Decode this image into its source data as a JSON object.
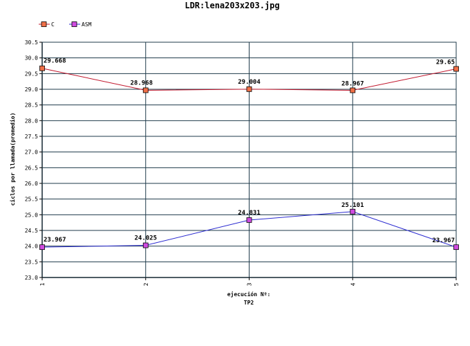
{
  "chart_data": {
    "type": "line",
    "title": "LDR:lena203x203.jpg",
    "xlabel": "ejecución Nº:",
    "xlabel2": "TP2",
    "ylabel": "ciclos por llamada(promedio)",
    "categories": [
      "1",
      "2",
      "3",
      "4",
      "5"
    ],
    "ylim": [
      23.0,
      30.5
    ],
    "ytick_step": 0.5,
    "yticks": [
      "23.0",
      "23.5",
      "24.0",
      "24.5",
      "25.0",
      "25.5",
      "26.0",
      "26.5",
      "27.0",
      "27.5",
      "28.0",
      "28.5",
      "29.0",
      "29.5",
      "30.0",
      "30.5"
    ],
    "grid": true,
    "legend_position": "top-left",
    "series": [
      {
        "name": "C",
        "values": [
          29.668,
          28.968,
          29.004,
          28.967,
          29.65
        ],
        "labels": [
          "29.668",
          "28.968",
          "29.004",
          "28.967",
          "29.65"
        ],
        "line_color": "#c0142a",
        "marker_color": "#f07048"
      },
      {
        "name": "ASM",
        "values": [
          23.967,
          24.025,
          24.831,
          25.101,
          23.967
        ],
        "labels": [
          "23.967",
          "24.025",
          "24.831",
          "25.101",
          "23.967"
        ],
        "line_color": "#2a2ad0",
        "marker_color": "#d04ce0"
      }
    ],
    "grid_color": "#1e3a4a"
  }
}
